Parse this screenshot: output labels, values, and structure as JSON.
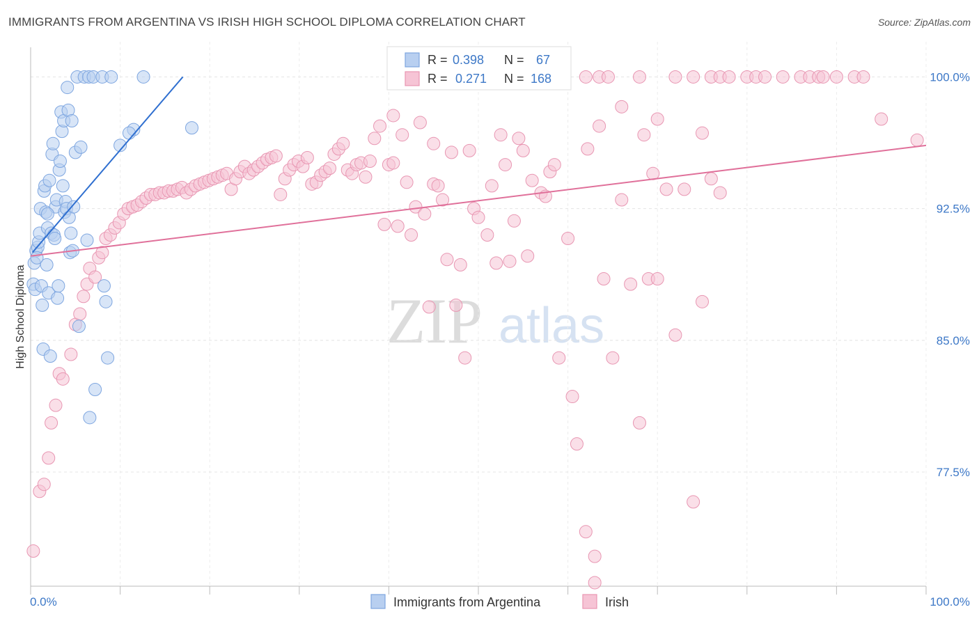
{
  "chart_data": {
    "type": "scatter",
    "title": "IMMIGRANTS FROM ARGENTINA VS IRISH HIGH SCHOOL DIPLOMA CORRELATION CHART",
    "source": "Source: ZipAtlas.com",
    "watermark": {
      "zip": "ZIP",
      "atlas": "atlas"
    },
    "xlabel": "",
    "ylabel": "High School Diploma",
    "xlim": [
      0,
      100
    ],
    "ylim": [
      71,
      102
    ],
    "x_tick_labels": {
      "left": "0.0%",
      "right": "100.0%"
    },
    "y_ticks": [
      {
        "value": 100.0,
        "label": "100.0%"
      },
      {
        "value": 92.5,
        "label": "92.5%"
      },
      {
        "value": 85.0,
        "label": "85.0%"
      },
      {
        "value": 77.5,
        "label": "77.5%"
      }
    ],
    "grid": true,
    "legend_position": "top-center",
    "stats_legend": [
      {
        "series": "Immigrants from Argentina",
        "r_label": "R =",
        "r_value": "0.398",
        "n_label": "N =",
        "n_value": "67"
      },
      {
        "series": "Irish",
        "r_label": "R =",
        "r_value": "0.271",
        "n_label": "N =",
        "n_value": "168"
      }
    ],
    "series": [
      {
        "name": "Immigrants from Argentina",
        "color": "#7ea6e0",
        "fill": "#b8cff0",
        "line_color": "#2f6fd0",
        "trend": {
          "x0": 0.2,
          "y0": 90.0,
          "x1": 17,
          "y1": 100.0
        },
        "points": [
          [
            0.3,
            88.2
          ],
          [
            0.5,
            87.9
          ],
          [
            0.4,
            89.4
          ],
          [
            0.6,
            90.1
          ],
          [
            0.8,
            90.3
          ],
          [
            0.9,
            90.6
          ],
          [
            1.0,
            91.1
          ],
          [
            1.1,
            92.5
          ],
          [
            1.2,
            88.1
          ],
          [
            1.3,
            87.0
          ],
          [
            1.4,
            84.5
          ],
          [
            1.5,
            93.5
          ],
          [
            1.6,
            93.8
          ],
          [
            1.7,
            92.3
          ],
          [
            1.8,
            89.3
          ],
          [
            1.9,
            91.4
          ],
          [
            2.0,
            87.7
          ],
          [
            2.1,
            94.1
          ],
          [
            2.2,
            84.1
          ],
          [
            2.3,
            91.1
          ],
          [
            2.4,
            95.6
          ],
          [
            2.5,
            96.2
          ],
          [
            2.6,
            91.0
          ],
          [
            2.7,
            90.8
          ],
          [
            2.8,
            92.6
          ],
          [
            2.9,
            93.0
          ],
          [
            3.0,
            87.4
          ],
          [
            3.1,
            88.1
          ],
          [
            3.2,
            94.7
          ],
          [
            3.3,
            95.2
          ],
          [
            3.4,
            98.0
          ],
          [
            3.5,
            96.9
          ],
          [
            3.6,
            93.8
          ],
          [
            3.7,
            97.5
          ],
          [
            3.8,
            92.3
          ],
          [
            3.9,
            92.9
          ],
          [
            4.0,
            92.5
          ],
          [
            4.1,
            99.4
          ],
          [
            4.2,
            98.1
          ],
          [
            4.3,
            92.0
          ],
          [
            4.4,
            90.0
          ],
          [
            4.5,
            91.1
          ],
          [
            4.6,
            97.5
          ],
          [
            4.7,
            90.1
          ],
          [
            4.8,
            92.6
          ],
          [
            5.0,
            95.7
          ],
          [
            5.2,
            100.0
          ],
          [
            5.4,
            85.8
          ],
          [
            5.6,
            96.0
          ],
          [
            6.0,
            100.0
          ],
          [
            6.3,
            90.7
          ],
          [
            6.5,
            100.0
          ],
          [
            6.6,
            80.6
          ],
          [
            7.0,
            100.0
          ],
          [
            7.2,
            82.2
          ],
          [
            8.0,
            100.0
          ],
          [
            8.2,
            88.1
          ],
          [
            8.4,
            87.2
          ],
          [
            8.6,
            84.0
          ],
          [
            9.0,
            100.0
          ],
          [
            10.0,
            96.1
          ],
          [
            11.5,
            97.0
          ],
          [
            11.0,
            96.8
          ],
          [
            12.6,
            100.0
          ],
          [
            18.0,
            97.1
          ],
          [
            0.7,
            89.7
          ],
          [
            1.9,
            92.2
          ]
        ]
      },
      {
        "name": "Irish",
        "color": "#e896b2",
        "fill": "#f6c4d5",
        "line_color": "#e0709a",
        "trend": {
          "x0": 0,
          "y0": 89.8,
          "x1": 100,
          "y1": 96.1
        },
        "points": [
          [
            0.3,
            73.0
          ],
          [
            1.0,
            76.4
          ],
          [
            1.5,
            76.8
          ],
          [
            2.0,
            78.3
          ],
          [
            2.3,
            80.3
          ],
          [
            2.8,
            81.3
          ],
          [
            3.2,
            83.1
          ],
          [
            3.6,
            82.8
          ],
          [
            4.5,
            84.2
          ],
          [
            5.0,
            85.9
          ],
          [
            5.5,
            86.5
          ],
          [
            5.9,
            87.5
          ],
          [
            6.3,
            88.2
          ],
          [
            6.6,
            89.1
          ],
          [
            7.2,
            88.6
          ],
          [
            7.6,
            89.7
          ],
          [
            8.0,
            90.0
          ],
          [
            8.4,
            90.8
          ],
          [
            8.9,
            91.0
          ],
          [
            9.4,
            91.4
          ],
          [
            9.9,
            91.7
          ],
          [
            10.4,
            92.2
          ],
          [
            10.9,
            92.5
          ],
          [
            11.4,
            92.6
          ],
          [
            11.9,
            92.7
          ],
          [
            12.4,
            92.9
          ],
          [
            12.9,
            93.1
          ],
          [
            13.4,
            93.3
          ],
          [
            13.9,
            93.3
          ],
          [
            14.4,
            93.4
          ],
          [
            14.9,
            93.4
          ],
          [
            15.4,
            93.5
          ],
          [
            15.9,
            93.5
          ],
          [
            16.4,
            93.6
          ],
          [
            16.9,
            93.7
          ],
          [
            17.4,
            93.4
          ],
          [
            17.9,
            93.6
          ],
          [
            18.4,
            93.8
          ],
          [
            18.9,
            93.9
          ],
          [
            19.4,
            94.0
          ],
          [
            19.9,
            94.1
          ],
          [
            20.4,
            94.2
          ],
          [
            20.9,
            94.3
          ],
          [
            21.4,
            94.4
          ],
          [
            21.9,
            94.5
          ],
          [
            22.4,
            93.6
          ],
          [
            22.9,
            94.2
          ],
          [
            23.4,
            94.6
          ],
          [
            23.9,
            94.9
          ],
          [
            24.4,
            94.5
          ],
          [
            24.9,
            94.7
          ],
          [
            25.4,
            94.9
          ],
          [
            25.9,
            95.1
          ],
          [
            26.4,
            95.3
          ],
          [
            26.9,
            95.4
          ],
          [
            27.4,
            95.5
          ],
          [
            27.9,
            93.3
          ],
          [
            28.4,
            94.2
          ],
          [
            28.9,
            94.7
          ],
          [
            29.4,
            95.0
          ],
          [
            29.9,
            95.2
          ],
          [
            30.4,
            94.9
          ],
          [
            30.9,
            95.4
          ],
          [
            31.4,
            93.9
          ],
          [
            31.9,
            94.0
          ],
          [
            32.4,
            94.4
          ],
          [
            32.9,
            94.6
          ],
          [
            33.4,
            94.8
          ],
          [
            33.9,
            95.6
          ],
          [
            34.4,
            95.9
          ],
          [
            34.9,
            96.2
          ],
          [
            35.4,
            94.7
          ],
          [
            35.9,
            94.5
          ],
          [
            36.4,
            95.0
          ],
          [
            36.9,
            95.1
          ],
          [
            37.4,
            94.3
          ],
          [
            37.9,
            95.2
          ],
          [
            38.4,
            96.5
          ],
          [
            39.0,
            97.2
          ],
          [
            39.5,
            91.6
          ],
          [
            40.0,
            95.0
          ],
          [
            40.5,
            95.1
          ],
          [
            41.0,
            91.5
          ],
          [
            41.5,
            96.7
          ],
          [
            42.0,
            94.0
          ],
          [
            42.5,
            91.0
          ],
          [
            43.0,
            92.6
          ],
          [
            43.5,
            97.4
          ],
          [
            44.0,
            92.2
          ],
          [
            44.5,
            86.9
          ],
          [
            45.0,
            93.9
          ],
          [
            45.5,
            93.8
          ],
          [
            46.0,
            93.0
          ],
          [
            46.5,
            89.6
          ],
          [
            47.0,
            95.7
          ],
          [
            47.5,
            87.0
          ],
          [
            48.0,
            89.3
          ],
          [
            48.5,
            84.0
          ],
          [
            49.0,
            95.8
          ],
          [
            49.5,
            92.5
          ],
          [
            50.0,
            92.0
          ],
          [
            51.0,
            91.0
          ],
          [
            51.5,
            93.8
          ],
          [
            52.0,
            89.4
          ],
          [
            52.5,
            96.7
          ],
          [
            53.0,
            95.0
          ],
          [
            53.5,
            89.5
          ],
          [
            54.0,
            91.8
          ],
          [
            55.0,
            95.8
          ],
          [
            55.5,
            89.8
          ],
          [
            56.0,
            94.1
          ],
          [
            57.0,
            93.4
          ],
          [
            57.5,
            93.2
          ],
          [
            58.0,
            94.6
          ],
          [
            59.0,
            84.0
          ],
          [
            60.0,
            90.8
          ],
          [
            60.5,
            81.8
          ],
          [
            61.0,
            79.1
          ],
          [
            62.0,
            74.1
          ],
          [
            63.0,
            72.7
          ],
          [
            63.5,
            97.2
          ],
          [
            64.0,
            88.5
          ],
          [
            65.0,
            84.0
          ],
          [
            66.0,
            93.0
          ],
          [
            67.0,
            88.2
          ],
          [
            68.0,
            80.3
          ],
          [
            69.0,
            88.5
          ],
          [
            69.5,
            94.5
          ],
          [
            70.0,
            88.5
          ],
          [
            71.0,
            93.6
          ],
          [
            72.0,
            85.3
          ],
          [
            73.0,
            93.6
          ],
          [
            74.0,
            75.8
          ],
          [
            75.0,
            87.2
          ],
          [
            76.0,
            94.2
          ],
          [
            77.0,
            93.4
          ],
          [
            63.0,
            71.2
          ],
          [
            62.0,
            100.0
          ],
          [
            63.5,
            100.0
          ],
          [
            64.5,
            100.0
          ],
          [
            66.0,
            98.3
          ],
          [
            68.0,
            100.0
          ],
          [
            70.0,
            97.6
          ],
          [
            72.0,
            100.0
          ],
          [
            74.0,
            100.0
          ],
          [
            75.0,
            96.8
          ],
          [
            76.0,
            100.0
          ],
          [
            77.0,
            100.0
          ],
          [
            78.0,
            100.0
          ],
          [
            80.0,
            100.0
          ],
          [
            81.0,
            100.0
          ],
          [
            82.0,
            100.0
          ],
          [
            84.0,
            100.0
          ],
          [
            86.0,
            100.0
          ],
          [
            87.0,
            100.0
          ],
          [
            88.0,
            100.0
          ],
          [
            90.0,
            100.0
          ],
          [
            92.0,
            100.0
          ],
          [
            95.0,
            97.6
          ],
          [
            99.0,
            96.4
          ],
          [
            88.5,
            100.0
          ],
          [
            93.0,
            100.0
          ],
          [
            62.2,
            95.9
          ],
          [
            40.5,
            97.8
          ],
          [
            45.0,
            96.2
          ],
          [
            68.5,
            96.7
          ],
          [
            54.5,
            96.5
          ],
          [
            58.5,
            95.0
          ]
        ]
      }
    ]
  }
}
